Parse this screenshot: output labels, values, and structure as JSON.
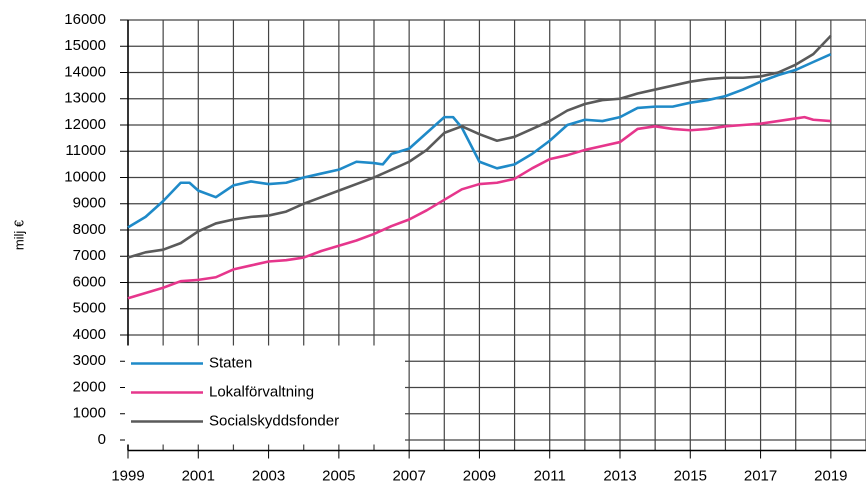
{
  "chart_data": {
    "type": "line",
    "y_label": "milj €",
    "xlim": [
      1999,
      2020
    ],
    "xticks": [
      1999,
      2001,
      2003,
      2005,
      2007,
      2009,
      2011,
      2013,
      2015,
      2017,
      2019
    ],
    "x_minor_ticks": [
      2000,
      2002,
      2004,
      2006,
      2008,
      2010,
      2012,
      2014,
      2016,
      2018,
      2020
    ],
    "ylim": [
      -400,
      16000
    ],
    "yticks": [
      0,
      1000,
      2000,
      3000,
      4000,
      5000,
      6000,
      7000,
      8000,
      9000,
      10000,
      11000,
      12000,
      13000,
      14000,
      15000,
      16000
    ],
    "grid": true,
    "legend": "lower left",
    "series": [
      {
        "name": "Staten",
        "color": "#1f8ac8",
        "x": [
          1999,
          1999.5,
          2000,
          2000.5,
          2000.75,
          2001,
          2001.5,
          2002,
          2002.5,
          2003,
          2003.5,
          2004,
          2004.5,
          2005,
          2005.5,
          2006,
          2006.25,
          2006.5,
          2007,
          2007.5,
          2008,
          2008.25,
          2008.5,
          2009,
          2009.5,
          2010,
          2010.5,
          2011,
          2011.5,
          2012,
          2012.5,
          2013,
          2013.5,
          2014,
          2014.5,
          2015,
          2015.5,
          2016,
          2016.5,
          2017,
          2017.5,
          2018,
          2018.5,
          2019
        ],
        "values": [
          8100,
          8500,
          9100,
          9800,
          9800,
          9500,
          9250,
          9700,
          9850,
          9750,
          9800,
          10000,
          10150,
          10300,
          10600,
          10550,
          10500,
          10900,
          11100,
          11700,
          12300,
          12300,
          11900,
          10600,
          10350,
          10500,
          10900,
          11400,
          12000,
          12200,
          12150,
          12300,
          12650,
          12700,
          12700,
          12850,
          12950,
          13100,
          13350,
          13650,
          13900,
          14100,
          14400,
          14700
        ]
      },
      {
        "name": "Lokalförvaltning",
        "color": "#e6368c",
        "x": [
          1999,
          1999.5,
          2000,
          2000.5,
          2001,
          2001.5,
          2002,
          2002.5,
          2003,
          2003.5,
          2004,
          2004.5,
          2005,
          2005.5,
          2006,
          2006.5,
          2007,
          2007.5,
          2008,
          2008.5,
          2009,
          2009.5,
          2010,
          2010.5,
          2011,
          2011.5,
          2012,
          2012.5,
          2013,
          2013.5,
          2014,
          2014.5,
          2015,
          2015.5,
          2016,
          2016.5,
          2017,
          2017.5,
          2018,
          2018.25,
          2018.5,
          2019
        ],
        "values": [
          5400,
          5600,
          5800,
          6050,
          6100,
          6200,
          6500,
          6650,
          6800,
          6850,
          6950,
          7200,
          7400,
          7600,
          7850,
          8150,
          8400,
          8750,
          9150,
          9550,
          9750,
          9800,
          9950,
          10350,
          10700,
          10850,
          11050,
          11200,
          11350,
          11850,
          11950,
          11850,
          11800,
          11850,
          11950,
          12000,
          12050,
          12150,
          12250,
          12300,
          12200,
          12150
        ]
      },
      {
        "name": "Socialskyddsfonder",
        "color": "#5a5a5a",
        "x": [
          1999,
          1999.5,
          2000,
          2000.5,
          2001,
          2001.5,
          2002,
          2002.5,
          2003,
          2003.5,
          2004,
          2004.5,
          2005,
          2005.5,
          2006,
          2006.5,
          2007,
          2007.5,
          2008,
          2008.5,
          2009,
          2009.5,
          2010,
          2010.5,
          2011,
          2011.5,
          2012,
          2012.5,
          2013,
          2013.5,
          2014,
          2014.5,
          2015,
          2015.5,
          2016,
          2016.5,
          2017,
          2017.5,
          2018,
          2018.5,
          2019
        ],
        "values": [
          6950,
          7150,
          7250,
          7500,
          7950,
          8250,
          8400,
          8500,
          8550,
          8700,
          9000,
          9250,
          9500,
          9750,
          10000,
          10300,
          10600,
          11050,
          11700,
          11950,
          11650,
          11400,
          11550,
          11850,
          12150,
          12550,
          12800,
          12950,
          13000,
          13200,
          13350,
          13500,
          13650,
          13750,
          13800,
          13800,
          13850,
          14000,
          14300,
          14700,
          15400
        ]
      }
    ]
  }
}
